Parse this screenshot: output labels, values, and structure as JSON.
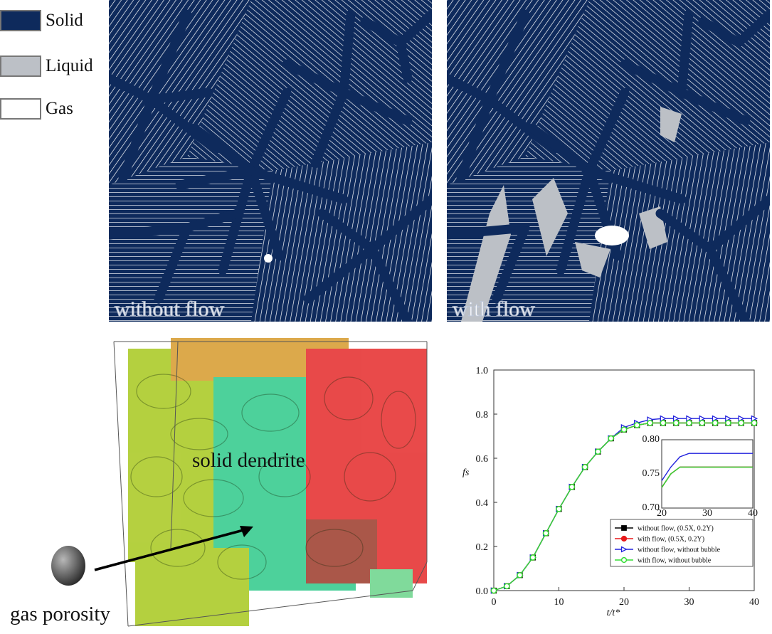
{
  "phase_legend": [
    {
      "label": "Solid",
      "color": "#0e2a5c"
    },
    {
      "label": "Liquid",
      "color": "#bcc0c6"
    },
    {
      "label": "Gas",
      "color": "#ffffff"
    }
  ],
  "panels": [
    {
      "label": "without flow"
    },
    {
      "label": "with flow"
    }
  ],
  "volume": {
    "dendrite_label": "solid dendrite",
    "porosity_label": "gas porosity"
  },
  "chart_data": {
    "type": "line",
    "xlabel": "t/t*",
    "ylabel": "fs",
    "xlim": [
      0,
      40
    ],
    "ylim": [
      0,
      1
    ],
    "xticks": [
      "0",
      "10",
      "20",
      "30",
      "40"
    ],
    "yticks": [
      "0.0",
      "0.2",
      "0.4",
      "0.6",
      "0.8",
      "1.0"
    ],
    "x": [
      0,
      2,
      4,
      6,
      8,
      10,
      12,
      14,
      16,
      18,
      20,
      22,
      24,
      26,
      28,
      30,
      32,
      34,
      36,
      38,
      40
    ],
    "series": [
      {
        "name": "without flow, (0.5X, 0.2Y)",
        "color": "#000000",
        "marker": "square",
        "values": [
          0.0,
          0.02,
          0.07,
          0.15,
          0.26,
          0.37,
          0.47,
          0.56,
          0.63,
          0.69,
          0.73,
          0.75,
          0.76,
          0.76,
          0.76,
          0.76,
          0.76,
          0.76,
          0.76,
          0.76,
          0.76
        ]
      },
      {
        "name": "with flow, (0.5X, 0.2Y)",
        "color": "#e8191b",
        "marker": "circle",
        "values": [
          0.0,
          0.02,
          0.07,
          0.15,
          0.26,
          0.37,
          0.47,
          0.56,
          0.63,
          0.69,
          0.73,
          0.75,
          0.76,
          0.76,
          0.76,
          0.76,
          0.76,
          0.76,
          0.76,
          0.76,
          0.76
        ]
      },
      {
        "name": "without flow, without bubble",
        "color": "#2222dd",
        "marker": "triangle",
        "values": [
          0.0,
          0.02,
          0.07,
          0.15,
          0.26,
          0.37,
          0.47,
          0.56,
          0.63,
          0.69,
          0.74,
          0.76,
          0.775,
          0.78,
          0.78,
          0.78,
          0.78,
          0.78,
          0.78,
          0.78,
          0.78
        ]
      },
      {
        "name": "with flow, without bubble",
        "color": "#33dd33",
        "marker": "circle-open",
        "values": [
          0.0,
          0.02,
          0.07,
          0.15,
          0.26,
          0.37,
          0.47,
          0.56,
          0.63,
          0.69,
          0.73,
          0.75,
          0.76,
          0.76,
          0.76,
          0.76,
          0.76,
          0.76,
          0.76,
          0.76,
          0.76
        ]
      }
    ],
    "inset": {
      "xlim": [
        20,
        40
      ],
      "ylim": [
        0.7,
        0.8
      ],
      "xticks": [
        "20",
        "30",
        "40"
      ],
      "yticks": [
        "0.70",
        "0.75",
        "0.80"
      ]
    }
  }
}
